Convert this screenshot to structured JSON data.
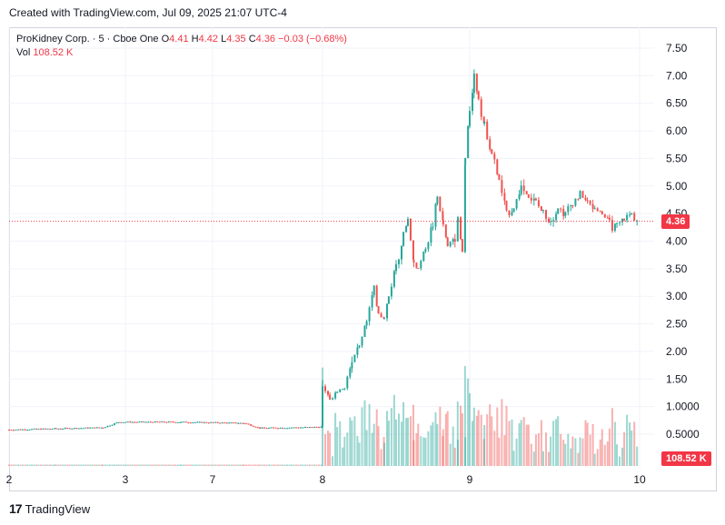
{
  "header": {
    "title": "Created with TradingView.com, Jul 09, 2025 21:07 UTC-4"
  },
  "legend": {
    "symbol": "ProKidney Corp. · 5 · Cboe One",
    "o_label": "O",
    "o": "4.41",
    "h_label": "H",
    "h": "4.42",
    "l_label": "L",
    "l": "4.35",
    "c_label": "C",
    "c": "4.36",
    "change": "−0.03 (−0.68%)",
    "vol_label": "Vol",
    "vol": "108.52 K"
  },
  "price_tag": "4.36",
  "volume_tag": "108.52 K",
  "footer": {
    "brand": "TradingView"
  },
  "colors": {
    "up": "#26a69a",
    "down": "#ef5350",
    "price_line": "#f23645"
  },
  "chart_data": {
    "type": "candlestick",
    "title": "ProKidney Corp. · 5 · Cboe One",
    "y_ticks": [
      "7.50",
      "7.00",
      "6.50",
      "6.00",
      "5.50",
      "5.00",
      "4.50",
      "4.00",
      "3.50",
      "3.00",
      "2.50",
      "2.00",
      "1.50",
      "1.0000",
      "0.5000"
    ],
    "x_ticks": [
      "2",
      "3",
      "7",
      "8",
      "9",
      "10"
    ],
    "ylim": [
      0,
      7.9
    ],
    "last_price": 4.36,
    "price_points": [
      [
        0.0,
        0.58
      ],
      [
        0.15,
        0.6
      ],
      [
        0.3,
        0.62
      ],
      [
        0.35,
        0.72
      ],
      [
        0.55,
        0.72
      ],
      [
        0.75,
        0.7
      ],
      [
        0.8,
        0.61
      ],
      [
        1.0,
        0.63
      ],
      [
        1.0,
        1.3
      ],
      [
        1.05,
        1.15
      ],
      [
        1.1,
        1.25
      ],
      [
        1.15,
        1.45
      ],
      [
        1.2,
        1.85
      ],
      [
        1.25,
        2.1
      ],
      [
        1.3,
        2.6
      ],
      [
        1.35,
        3.1
      ],
      [
        1.38,
        2.7
      ],
      [
        1.42,
        2.6
      ],
      [
        1.45,
        3.0
      ],
      [
        1.5,
        3.6
      ],
      [
        1.55,
        4.1
      ],
      [
        1.58,
        4.4
      ],
      [
        1.62,
        3.6
      ],
      [
        1.65,
        3.5
      ],
      [
        1.7,
        3.9
      ],
      [
        1.75,
        4.3
      ],
      [
        1.78,
        4.8
      ],
      [
        1.82,
        4.3
      ],
      [
        1.85,
        3.9
      ],
      [
        1.9,
        4.1
      ],
      [
        1.92,
        4.4
      ],
      [
        1.95,
        3.8
      ],
      [
        1.97,
        5.5
      ],
      [
        2.0,
        6.4
      ],
      [
        2.03,
        7.0
      ],
      [
        2.06,
        6.6
      ],
      [
        2.1,
        6.1
      ],
      [
        2.15,
        5.6
      ],
      [
        2.2,
        5.1
      ],
      [
        2.25,
        4.5
      ],
      [
        2.3,
        4.6
      ],
      [
        2.35,
        5.0
      ],
      [
        2.4,
        4.8
      ],
      [
        2.45,
        4.7
      ],
      [
        2.5,
        4.5
      ],
      [
        2.55,
        4.4
      ],
      [
        2.6,
        4.6
      ],
      [
        2.65,
        4.5
      ],
      [
        2.7,
        4.7
      ],
      [
        2.75,
        4.85
      ],
      [
        2.8,
        4.7
      ],
      [
        2.85,
        4.6
      ],
      [
        2.9,
        4.5
      ],
      [
        2.95,
        4.3
      ],
      [
        3.0,
        4.25
      ],
      [
        3.05,
        4.4
      ],
      [
        3.1,
        4.5
      ],
      [
        3.15,
        4.36
      ]
    ]
  }
}
